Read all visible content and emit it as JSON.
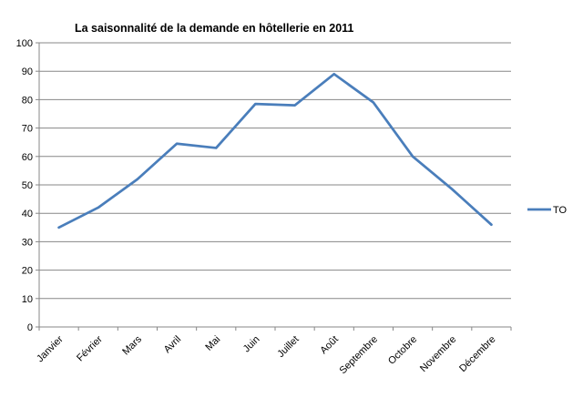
{
  "chart_data": {
    "type": "line",
    "title": "La saisonnalité de la demande en hôtellerie en 2011",
    "xlabel": "",
    "ylabel": "",
    "categories": [
      "Janvier",
      "Février",
      "Mars",
      "Avril",
      "Mai",
      "Juin",
      "Juillet",
      "Août",
      "Septembre",
      "Octobre",
      "Novembre",
      "Décembre"
    ],
    "series": [
      {
        "name": "TO",
        "values": [
          35,
          42,
          52,
          64.5,
          63,
          78.5,
          78,
          89,
          79,
          60,
          48.5,
          36
        ],
        "color": "#4a7ebb"
      }
    ],
    "ylim": [
      0,
      100
    ],
    "yticks": [
      0,
      10,
      20,
      30,
      40,
      50,
      60,
      70,
      80,
      90,
      100
    ],
    "grid": true,
    "legend_position": "right"
  }
}
